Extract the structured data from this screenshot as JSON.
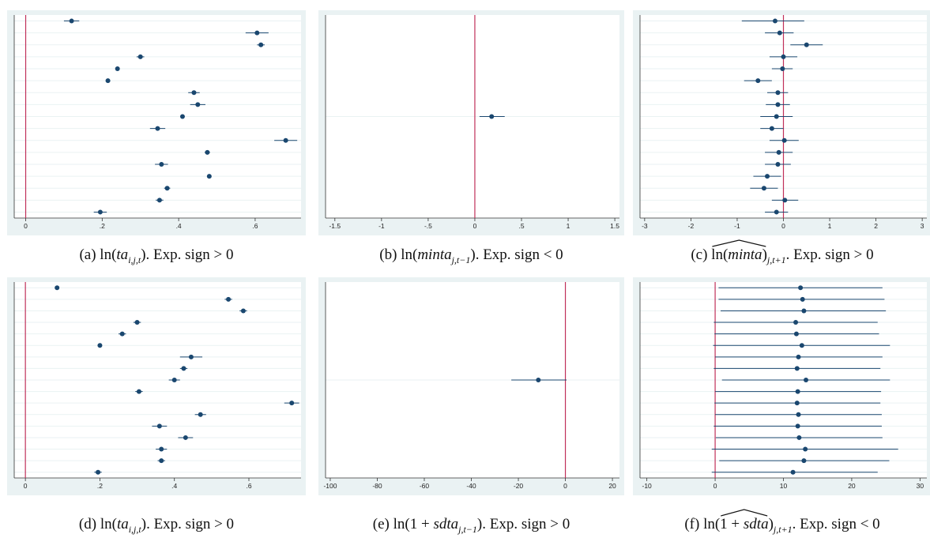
{
  "colors": {
    "panel_bg": "#eaf2f3",
    "plot_bg": "#ffffff",
    "zero_line": "#c0305a",
    "marker": "#1a476f",
    "ci_line": "#1a476f",
    "row_grid": "#eaf2f3"
  },
  "captions": {
    "a": {
      "letter": "(a)",
      "fn": "ln(",
      "var": "ta",
      "sub": "i,j,t",
      "close": ")",
      "tail": ". Exp. sign > 0"
    },
    "b": {
      "letter": "(b)",
      "fn": "ln(",
      "var": "minta",
      "sub": "j,t−1",
      "close": ")",
      "tail": ". Exp. sign < 0"
    },
    "c": {
      "letter": "(c)",
      "fn": "ln(",
      "var": "minta",
      "close": ")",
      "sub": "j,t+1",
      "tail": ". Exp. sign > 0"
    },
    "d": {
      "letter": "(d)",
      "fn": "ln(",
      "var": "ta",
      "sub": "i,j,t",
      "close": ")",
      "tail": ". Exp. sign > 0"
    },
    "e": {
      "letter": "(e)",
      "fn": "ln(1 + ",
      "var": "sdta",
      "sub": "j,t−1",
      "close": ")",
      "tail": ". Exp. sign > 0"
    },
    "f": {
      "letter": "(f)",
      "fn": "ln(",
      "pre": "1 + ",
      "var": "sdta",
      "close": ")",
      "sub": "j,t+1",
      "tail": ". Exp. sign < 0"
    }
  },
  "chart_data": [
    {
      "id": "a",
      "type": "scatter",
      "title": "",
      "xlabel": "",
      "ylabel": "",
      "xlim": [
        -0.03,
        0.72
      ],
      "zero_line": 0,
      "grid": true,
      "ticks": [
        0,
        0.2,
        0.4,
        0.6
      ],
      "tick_labels": [
        "0",
        ".2",
        ".4",
        ".6"
      ],
      "rows": 17,
      "points": [
        {
          "est": 0.12,
          "lo": 0.1,
          "hi": 0.14
        },
        {
          "est": 0.605,
          "lo": 0.575,
          "hi": 0.635
        },
        {
          "est": 0.615,
          "lo": 0.605,
          "hi": 0.625
        },
        {
          "est": 0.3,
          "lo": 0.29,
          "hi": 0.31
        },
        {
          "est": 0.24,
          "lo": 0.235,
          "hi": 0.245
        },
        {
          "est": 0.215,
          "lo": 0.212,
          "hi": 0.218
        },
        {
          "est": 0.44,
          "lo": 0.425,
          "hi": 0.455
        },
        {
          "est": 0.45,
          "lo": 0.43,
          "hi": 0.47
        },
        {
          "est": 0.41,
          "lo": 0.405,
          "hi": 0.415
        },
        {
          "est": 0.345,
          "lo": 0.325,
          "hi": 0.365
        },
        {
          "est": 0.68,
          "lo": 0.65,
          "hi": 0.71
        },
        {
          "est": 0.475,
          "lo": 0.468,
          "hi": 0.482
        },
        {
          "est": 0.355,
          "lo": 0.338,
          "hi": 0.372
        },
        {
          "est": 0.48,
          "lo": 0.477,
          "hi": 0.483
        },
        {
          "est": 0.37,
          "lo": 0.362,
          "hi": 0.378
        },
        {
          "est": 0.35,
          "lo": 0.34,
          "hi": 0.36
        },
        {
          "est": 0.195,
          "lo": 0.178,
          "hi": 0.212
        }
      ]
    },
    {
      "id": "b",
      "type": "scatter",
      "title": "",
      "xlabel": "",
      "ylabel": "",
      "xlim": [
        -1.6,
        1.55
      ],
      "zero_line": 0,
      "grid": true,
      "ticks": [
        -1.5,
        -1,
        -0.5,
        0,
        0.5,
        1,
        1.5
      ],
      "tick_labels": [
        "-1.5",
        "-1",
        "-.5",
        "0",
        ".5",
        "1",
        "1.5"
      ],
      "rows": 1,
      "points": [
        {
          "est": 0.18,
          "lo": 0.05,
          "hi": 0.32
        }
      ]
    },
    {
      "id": "c",
      "type": "scatter",
      "title": "",
      "xlabel": "",
      "ylabel": "",
      "xlim": [
        -3.1,
        3.1
      ],
      "zero_line": 0,
      "grid": true,
      "ticks": [
        -3,
        -2,
        -1,
        0,
        1,
        2,
        3
      ],
      "tick_labels": [
        "-3",
        "-2",
        "-1",
        "0",
        "1",
        "2",
        "3"
      ],
      "rows": 17,
      "points": [
        {
          "est": -0.18,
          "lo": -0.9,
          "hi": 0.45
        },
        {
          "est": -0.08,
          "lo": -0.4,
          "hi": 0.22
        },
        {
          "est": 0.5,
          "lo": 0.15,
          "hi": 0.85
        },
        {
          "est": 0.0,
          "lo": -0.3,
          "hi": 0.3
        },
        {
          "est": -0.02,
          "lo": -0.25,
          "hi": 0.2
        },
        {
          "est": -0.55,
          "lo": -0.85,
          "hi": -0.25
        },
        {
          "est": -0.12,
          "lo": -0.35,
          "hi": 0.1
        },
        {
          "est": -0.12,
          "lo": -0.38,
          "hi": 0.14
        },
        {
          "est": -0.15,
          "lo": -0.5,
          "hi": 0.2
        },
        {
          "est": -0.25,
          "lo": -0.5,
          "hi": 0.0
        },
        {
          "est": 0.02,
          "lo": -0.3,
          "hi": 0.33
        },
        {
          "est": -0.1,
          "lo": -0.4,
          "hi": 0.2
        },
        {
          "est": -0.12,
          "lo": -0.4,
          "hi": 0.16
        },
        {
          "est": -0.35,
          "lo": -0.65,
          "hi": -0.05
        },
        {
          "est": -0.42,
          "lo": -0.72,
          "hi": -0.12
        },
        {
          "est": 0.03,
          "lo": -0.25,
          "hi": 0.32
        },
        {
          "est": -0.15,
          "lo": -0.4,
          "hi": 0.1
        }
      ]
    },
    {
      "id": "d",
      "type": "scatter",
      "title": "",
      "xlabel": "",
      "ylabel": "",
      "xlim": [
        -0.03,
        0.74
      ],
      "zero_line": 0,
      "grid": true,
      "ticks": [
        0,
        0.2,
        0.4,
        0.6
      ],
      "tick_labels": [
        "0",
        ".2",
        ".4",
        ".6"
      ],
      "rows": 17,
      "points": [
        {
          "est": 0.085,
          "lo": 0.083,
          "hi": 0.087
        },
        {
          "est": 0.545,
          "lo": 0.535,
          "hi": 0.555
        },
        {
          "est": 0.585,
          "lo": 0.575,
          "hi": 0.595
        },
        {
          "est": 0.3,
          "lo": 0.29,
          "hi": 0.31
        },
        {
          "est": 0.26,
          "lo": 0.25,
          "hi": 0.27
        },
        {
          "est": 0.2,
          "lo": 0.197,
          "hi": 0.203
        },
        {
          "est": 0.445,
          "lo": 0.415,
          "hi": 0.475
        },
        {
          "est": 0.425,
          "lo": 0.415,
          "hi": 0.435
        },
        {
          "est": 0.4,
          "lo": 0.385,
          "hi": 0.415
        },
        {
          "est": 0.305,
          "lo": 0.295,
          "hi": 0.315
        },
        {
          "est": 0.715,
          "lo": 0.695,
          "hi": 0.735
        },
        {
          "est": 0.47,
          "lo": 0.455,
          "hi": 0.485
        },
        {
          "est": 0.36,
          "lo": 0.34,
          "hi": 0.38
        },
        {
          "est": 0.43,
          "lo": 0.41,
          "hi": 0.45
        },
        {
          "est": 0.365,
          "lo": 0.35,
          "hi": 0.38
        },
        {
          "est": 0.365,
          "lo": 0.355,
          "hi": 0.375
        },
        {
          "est": 0.195,
          "lo": 0.185,
          "hi": 0.205
        }
      ]
    },
    {
      "id": "e",
      "type": "scatter",
      "title": "",
      "xlabel": "",
      "ylabel": "",
      "xlim": [
        -102,
        23
      ],
      "zero_line": 0,
      "grid": true,
      "ticks": [
        -100,
        -80,
        -60,
        -40,
        -20,
        0,
        20
      ],
      "tick_labels": [
        "-100",
        "-80",
        "-60",
        "-40",
        "-20",
        "0",
        "20"
      ],
      "rows": 1,
      "points": [
        {
          "est": -11.5,
          "lo": -23,
          "hi": 0.5
        }
      ]
    },
    {
      "id": "f",
      "type": "scatter",
      "title": "",
      "xlabel": "",
      "ylabel": "",
      "xlim": [
        -11,
        31
      ],
      "zero_line": 0,
      "grid": true,
      "ticks": [
        -10,
        0,
        10,
        20,
        30
      ],
      "tick_labels": [
        "-10",
        "0",
        "10",
        "20",
        "30"
      ],
      "rows": 17,
      "points": [
        {
          "est": 12.5,
          "lo": 0.5,
          "hi": 24.5
        },
        {
          "est": 12.8,
          "lo": 0.5,
          "hi": 24.8
        },
        {
          "est": 13.0,
          "lo": 0.8,
          "hi": 25.0
        },
        {
          "est": 11.8,
          "lo": -0.2,
          "hi": 23.8
        },
        {
          "est": 11.9,
          "lo": -0.1,
          "hi": 24.0
        },
        {
          "est": 12.7,
          "lo": -0.3,
          "hi": 25.6
        },
        {
          "est": 12.2,
          "lo": 0.0,
          "hi": 24.5
        },
        {
          "est": 12.0,
          "lo": -0.2,
          "hi": 24.2
        },
        {
          "est": 13.3,
          "lo": 1.0,
          "hi": 25.6
        },
        {
          "est": 12.1,
          "lo": 0.0,
          "hi": 24.3
        },
        {
          "est": 12.0,
          "lo": -0.1,
          "hi": 24.2
        },
        {
          "est": 12.2,
          "lo": 0.0,
          "hi": 24.4
        },
        {
          "est": 12.1,
          "lo": -0.2,
          "hi": 24.4
        },
        {
          "est": 12.3,
          "lo": 0.1,
          "hi": 24.5
        },
        {
          "est": 13.2,
          "lo": -0.5,
          "hi": 26.8
        },
        {
          "est": 13.0,
          "lo": 0.6,
          "hi": 25.5
        },
        {
          "est": 11.4,
          "lo": -0.5,
          "hi": 23.8
        }
      ]
    }
  ]
}
